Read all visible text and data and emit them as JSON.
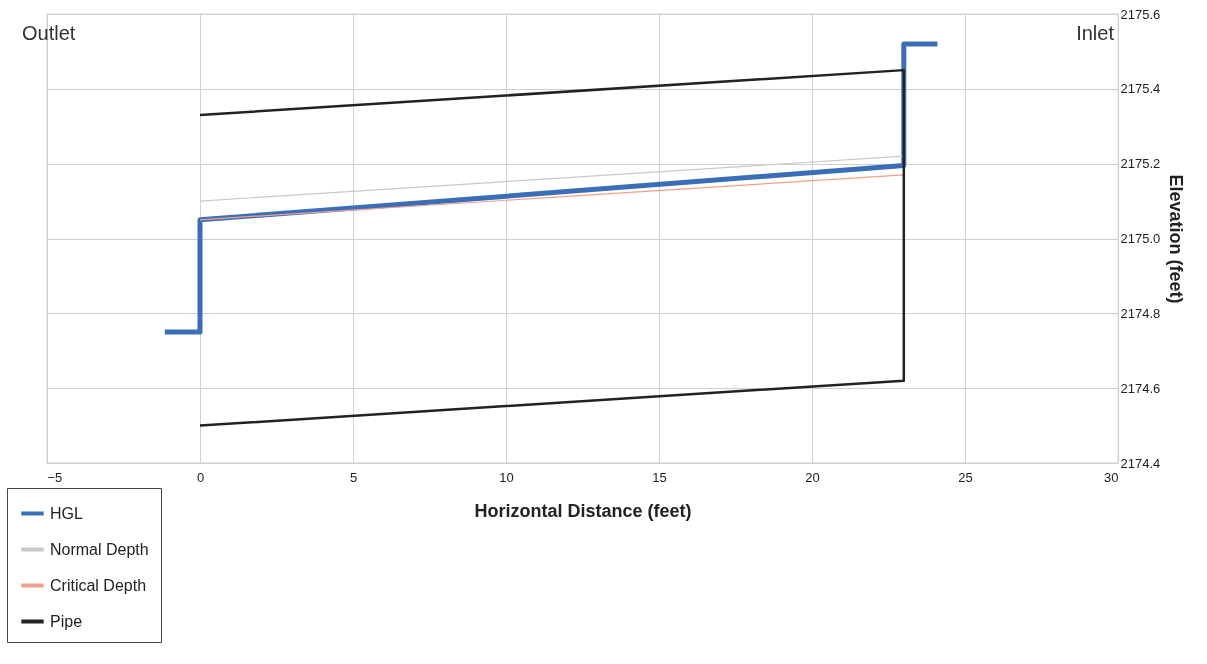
{
  "chart_data": {
    "type": "line",
    "xlabel": "Horizontal Distance (feet)",
    "ylabel": "Elevation (feet)",
    "xlim": [
      -5,
      30
    ],
    "xticks": [
      -5,
      0,
      5,
      10,
      15,
      20,
      25,
      30
    ],
    "ylim": [
      2174.4,
      2175.6
    ],
    "yticks": [
      {
        "value": 2174.4,
        "label": "2174.4"
      },
      {
        "value": 2174.6,
        "label": "2174.6"
      },
      {
        "value": 2174.8,
        "label": "2174.8"
      },
      {
        "value": 2175.0,
        "label": "2175.0"
      },
      {
        "value": 2175.2,
        "label": "2175.2"
      },
      {
        "value": 2175.4,
        "label": "2175.4"
      },
      {
        "value": 2175.6,
        "label": "2175.6"
      }
    ],
    "grid": true,
    "legend": "bottom left",
    "marker": "none",
    "line_style": "solid",
    "annotations": [
      "Outlet",
      "Inlet"
    ],
    "series": [
      {
        "name": "HGL",
        "color": "#3a6fb8",
        "x": [
          -1.15,
          0,
          0,
          23,
          23,
          24.1
        ],
        "values": [
          2174.75,
          2174.75,
          2175.05,
          2175.195,
          2175.52,
          2175.52
        ]
      },
      {
        "name": "Normal Depth",
        "color": "#c8c8c8",
        "x": [
          0,
          23
        ],
        "values": [
          2175.1,
          2175.22
        ]
      },
      {
        "name": "Critical Depth",
        "color": "#f2a08a",
        "x": [
          0,
          23
        ],
        "values": [
          2175.05,
          2175.17
        ]
      },
      {
        "name": "Pipe",
        "color": "#222222",
        "x": [
          0,
          23,
          23,
          0
        ],
        "values": [
          2175.33,
          2175.45,
          2174.62,
          2174.5
        ]
      }
    ]
  }
}
